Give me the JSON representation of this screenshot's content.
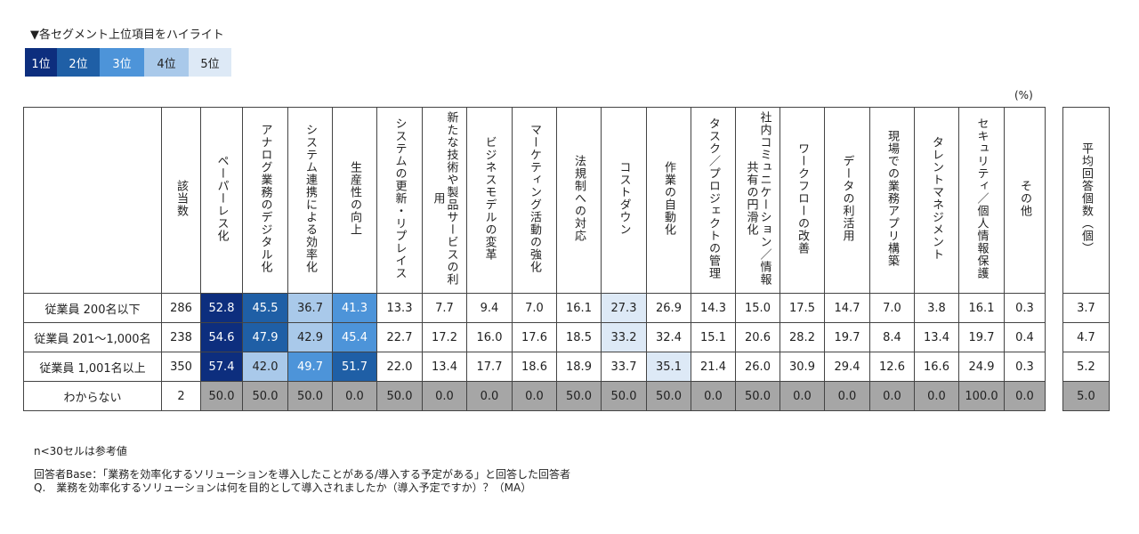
{
  "legend": {
    "title": "▼各セグメント上位項目をハイライト",
    "items": [
      {
        "label": "1位",
        "bg": "#0d2e7e",
        "fg": "#ffffff"
      },
      {
        "label": "2位",
        "bg": "#1f5fa6",
        "fg": "#ffffff"
      },
      {
        "label": "3位",
        "bg": "#4d94d9",
        "fg": "#ffffff"
      },
      {
        "label": "4位",
        "bg": "#a9c9ea",
        "fg": "#222222"
      },
      {
        "label": "5位",
        "bg": "#dde9f6",
        "fg": "#222222"
      }
    ]
  },
  "unit_label": "(%)",
  "n_header": "該当数",
  "avg_header": "平均回答個数（個）",
  "notes": {
    "small_n": "n<30セルは参考値",
    "base": "回答者Base：「業務を効率化するソリューションを導入したことがある/導入する予定がある」と回答した回答者",
    "question": "Q.　業務を効率化するソリューションは何を目的として導入されましたか（導入予定ですか）？（MA）"
  },
  "chart_data": {
    "type": "table",
    "columns": [
      "ペーパーレス化",
      "アナログ業務のデジタル化",
      "システム連携による効率化",
      "生産性の向上",
      "システムの更新・リプレイス",
      "新たな技術や製品サービスの利用",
      "ビジネスモデルの変革",
      "マーケティング活動の強化",
      "法規制への対応",
      "コストダウン",
      "作業の自動化",
      "タスク／プロジェクトの管理",
      "社内コミュニケーション／情報共有の円滑化",
      "ワークフローの改善",
      "データの利活用",
      "現場での業務アプリ構築",
      "タレントマネジメント",
      "セキュリティ／個人情報保護",
      "その他"
    ],
    "rows": [
      {
        "label": "従業員 200名以下",
        "n": "286",
        "avg": "3.7",
        "gray": false,
        "values": [
          "52.8",
          "45.5",
          "36.7",
          "41.3",
          "13.3",
          "7.7",
          "9.4",
          "7.0",
          "16.1",
          "27.3",
          "26.9",
          "14.3",
          "15.0",
          "17.5",
          "14.7",
          "7.0",
          "3.8",
          "16.1",
          "0.3"
        ],
        "ranks": [
          1,
          2,
          4,
          3,
          0,
          0,
          0,
          0,
          0,
          5,
          0,
          0,
          0,
          0,
          0,
          0,
          0,
          0,
          0
        ]
      },
      {
        "label": "従業員 201～1,000名",
        "n": "238",
        "avg": "4.7",
        "gray": false,
        "values": [
          "54.6",
          "47.9",
          "42.9",
          "45.4",
          "22.7",
          "17.2",
          "16.0",
          "17.6",
          "18.5",
          "33.2",
          "32.4",
          "15.1",
          "20.6",
          "28.2",
          "19.7",
          "8.4",
          "13.4",
          "19.7",
          "0.4"
        ],
        "ranks": [
          1,
          2,
          4,
          3,
          0,
          0,
          0,
          0,
          0,
          5,
          0,
          0,
          0,
          0,
          0,
          0,
          0,
          0,
          0
        ]
      },
      {
        "label": "従業員 1,001名以上",
        "n": "350",
        "avg": "5.2",
        "gray": false,
        "values": [
          "57.4",
          "42.0",
          "49.7",
          "51.7",
          "22.0",
          "13.4",
          "17.7",
          "18.6",
          "18.9",
          "33.7",
          "35.1",
          "21.4",
          "26.0",
          "30.9",
          "29.4",
          "12.6",
          "16.6",
          "24.9",
          "0.3"
        ],
        "ranks": [
          1,
          4,
          3,
          2,
          0,
          0,
          0,
          0,
          0,
          0,
          5,
          0,
          0,
          0,
          0,
          0,
          0,
          0,
          0
        ]
      },
      {
        "label": "わからない",
        "n": "2",
        "avg": "5.0",
        "gray": true,
        "values": [
          "50.0",
          "50.0",
          "50.0",
          "0.0",
          "50.0",
          "0.0",
          "0.0",
          "0.0",
          "50.0",
          "50.0",
          "50.0",
          "0.0",
          "50.0",
          "0.0",
          "0.0",
          "0.0",
          "0.0",
          "100.0",
          "0.0"
        ],
        "ranks": [
          0,
          0,
          0,
          0,
          0,
          0,
          0,
          0,
          0,
          0,
          0,
          0,
          0,
          0,
          0,
          0,
          0,
          0,
          0
        ]
      }
    ]
  }
}
